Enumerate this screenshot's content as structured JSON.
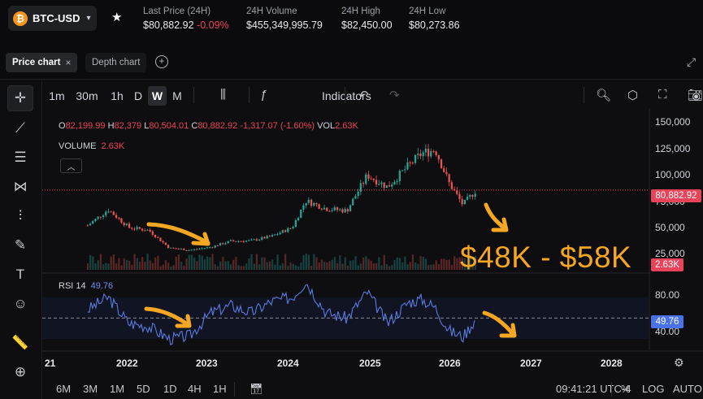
{
  "ticker": {
    "pair": "BTC-USD",
    "stats": [
      {
        "label": "Last Price (24H)",
        "value": "$80,882.92",
        "change": "-0.09%"
      },
      {
        "label": "24H Volume",
        "value": "$455,349,995.79"
      },
      {
        "label": "24H High",
        "value": "$82,450.00"
      },
      {
        "label": "24H Low",
        "value": "$80,273.86"
      }
    ]
  },
  "tabs": {
    "price": "Price chart",
    "depth": "Depth chart"
  },
  "timeframes": [
    "1m",
    "30m",
    "1h",
    "D",
    "W",
    "M"
  ],
  "selected_timeframe": "W",
  "indicators_label": "Indicators",
  "legend": {
    "o_key": "O",
    "o": "82,199.99",
    "h_key": "H",
    "h": "82,379",
    "l_key": "L",
    "l": "80,504.01",
    "c_key": "C",
    "c": "80,882.92",
    "change": "-1,317.07 (-1.60%)",
    "vol_key": "VOL",
    "vol": "2.63K",
    "volume_label": "VOLUME",
    "volume_value": "2.63K",
    "rsi_label": "RSI 14",
    "rsi_value": "49.76"
  },
  "price_axis": [
    "150,000",
    "125,000",
    "100,000",
    "75,000",
    "50,000",
    "25,000"
  ],
  "price_tag": "80,882.92",
  "volume_tag": "2.63K",
  "rsi_axis": [
    "80.00",
    "40.00"
  ],
  "rsi_tag": "49.76",
  "years": [
    "21",
    "2022",
    "2023",
    "2024",
    "2025",
    "2026",
    "2027",
    "2028"
  ],
  "bottom_timeframes": [
    "6M",
    "3M",
    "1M",
    "5D",
    "1D",
    "4H",
    "1H"
  ],
  "clock": "09:41:21 UTC-4",
  "bottom_options": {
    "percent": "%",
    "log": "LOG",
    "auto": "AUTO"
  },
  "annotation": "$48K - $58K",
  "colors": {
    "up": "#26a69a",
    "down": "#ef5350",
    "rsi": "#5b7be0",
    "annotation": "#f5a623",
    "accent_red": "#f0435a"
  },
  "chart_data": {
    "type": "line",
    "series": [
      {
        "x": [
          "2021-07",
          "2021-10",
          "2022-01",
          "2022-04",
          "2022-07",
          "2022-10",
          "2023-01",
          "2023-04",
          "2023-07",
          "2023-10",
          "2024-01",
          "2024-03",
          "2024-06",
          "2024-09",
          "2024-12",
          "2025-03",
          "2025-06",
          "2025-08",
          "2025-10",
          "2025-12",
          "2026-02",
          "2026-04"
        ],
        "values": [
          45000,
          61000,
          43000,
          40000,
          22000,
          20000,
          23000,
          29000,
          29500,
          34000,
          43000,
          70000,
          62000,
          60000,
          96000,
          84000,
          105000,
          118000,
          122000,
          88000,
          66000,
          80882
        ]
      },
      {
        "name": "RSI 14",
        "x": [
          "2021-07",
          "2021-10",
          "2022-01",
          "2022-04",
          "2022-07",
          "2022-10",
          "2023-01",
          "2023-04",
          "2023-07",
          "2023-10",
          "2024-01",
          "2024-03",
          "2024-06",
          "2024-09",
          "2024-12",
          "2025-03",
          "2025-06",
          "2025-08",
          "2025-10",
          "2025-12",
          "2026-02",
          "2026-04"
        ],
        "values": [
          58,
          70,
          45,
          42,
          30,
          33,
          55,
          62,
          55,
          66,
          70,
          85,
          55,
          50,
          75,
          45,
          65,
          68,
          60,
          38,
          32,
          49.76
        ]
      }
    ],
    "ylim": [
      0,
      150000
    ],
    "rsi_ylim": [
      20,
      90
    ]
  }
}
